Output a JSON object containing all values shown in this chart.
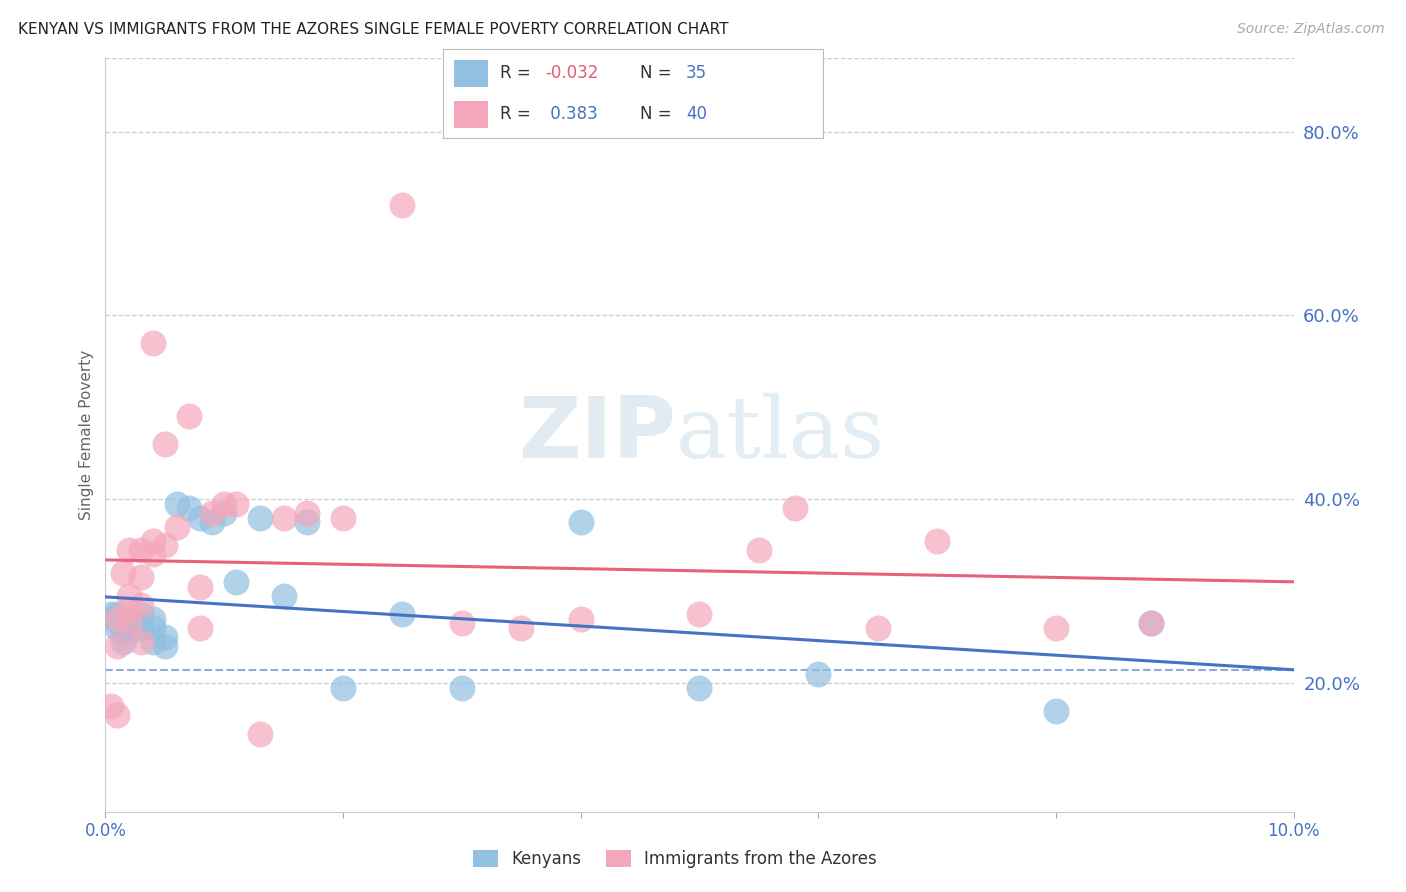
{
  "title": "KENYAN VS IMMIGRANTS FROM THE AZORES SINGLE FEMALE POVERTY CORRELATION CHART",
  "source": "Source: ZipAtlas.com",
  "ylabel": "Single Female Poverty",
  "right_ytick_labels": [
    "20.0%",
    "40.0%",
    "60.0%",
    "80.0%"
  ],
  "right_ytick_values": [
    0.2,
    0.4,
    0.6,
    0.8
  ],
  "R_kenyan": -0.032,
  "N_kenyan": 35,
  "R_azores": 0.383,
  "N_azores": 40,
  "xmin": 0.0,
  "xmax": 0.1,
  "ymin": 0.06,
  "ymax": 0.88,
  "kenyan_color": "#92c0e0",
  "azores_color": "#f4a7bb",
  "kenyan_line_color": "#4472c4",
  "azores_line_color": "#e8607a",
  "watermark_zip": "ZIP",
  "watermark_atlas": "atlas",
  "background_color": "#ffffff",
  "title_color": "#222222",
  "axis_color": "#4472c4",
  "grid_color": "#cccccc",
  "kenyan_x": [
    0.0005,
    0.0007,
    0.001,
    0.001,
    0.0015,
    0.0015,
    0.002,
    0.002,
    0.002,
    0.003,
    0.003,
    0.003,
    0.003,
    0.004,
    0.004,
    0.004,
    0.005,
    0.005,
    0.006,
    0.007,
    0.008,
    0.009,
    0.01,
    0.011,
    0.013,
    0.015,
    0.017,
    0.02,
    0.025,
    0.03,
    0.04,
    0.05,
    0.06,
    0.08,
    0.088
  ],
  "kenyan_y": [
    0.275,
    0.27,
    0.26,
    0.275,
    0.255,
    0.245,
    0.265,
    0.255,
    0.26,
    0.275,
    0.265,
    0.265,
    0.26,
    0.27,
    0.26,
    0.245,
    0.25,
    0.24,
    0.395,
    0.39,
    0.38,
    0.375,
    0.385,
    0.31,
    0.38,
    0.295,
    0.375,
    0.195,
    0.275,
    0.195,
    0.375,
    0.195,
    0.21,
    0.17,
    0.265
  ],
  "azores_x": [
    0.0005,
    0.001,
    0.001,
    0.001,
    0.0015,
    0.002,
    0.002,
    0.002,
    0.002,
    0.003,
    0.003,
    0.003,
    0.003,
    0.004,
    0.004,
    0.004,
    0.005,
    0.005,
    0.006,
    0.007,
    0.008,
    0.008,
    0.009,
    0.01,
    0.011,
    0.013,
    0.015,
    0.017,
    0.02,
    0.025,
    0.03,
    0.035,
    0.04,
    0.05,
    0.055,
    0.058,
    0.065,
    0.07,
    0.08,
    0.088
  ],
  "azores_y": [
    0.175,
    0.165,
    0.24,
    0.27,
    0.32,
    0.265,
    0.28,
    0.295,
    0.345,
    0.285,
    0.315,
    0.345,
    0.245,
    0.34,
    0.355,
    0.57,
    0.35,
    0.46,
    0.37,
    0.49,
    0.26,
    0.305,
    0.385,
    0.395,
    0.395,
    0.145,
    0.38,
    0.385,
    0.38,
    0.72,
    0.265,
    0.26,
    0.27,
    0.275,
    0.345,
    0.39,
    0.26,
    0.355,
    0.26,
    0.265
  ],
  "xticks": [
    0.0,
    0.02,
    0.04,
    0.06,
    0.08,
    0.1
  ]
}
